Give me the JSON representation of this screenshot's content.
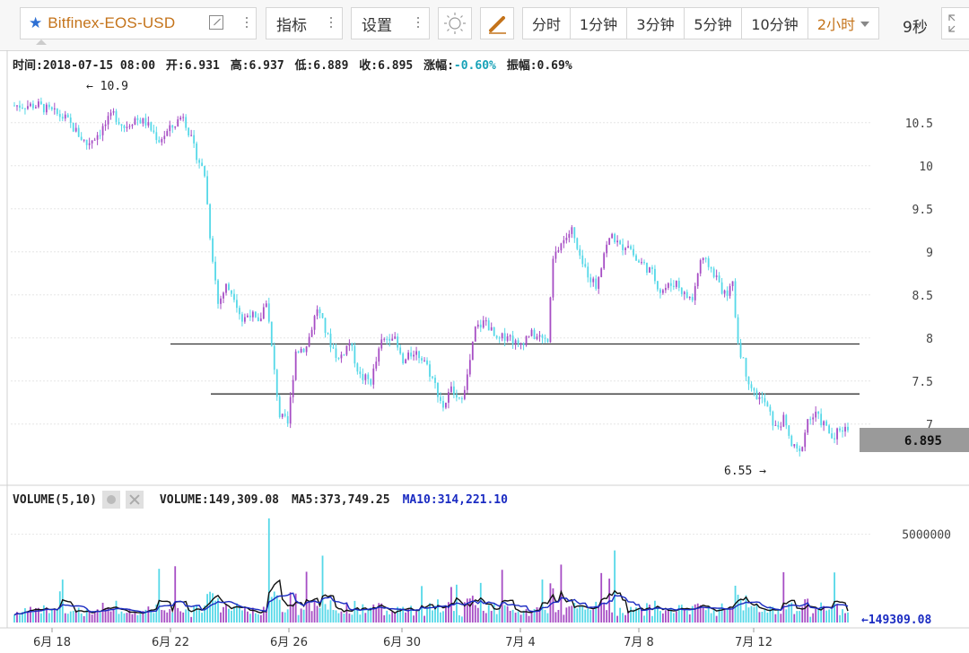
{
  "toolbar": {
    "symbol": "Bitfinex-EOS-USD",
    "indicators_label": "指标",
    "settings_label": "设置",
    "periods": [
      "分时",
      "1分钟",
      "3分钟",
      "5分钟",
      "10分钟",
      "2小时"
    ],
    "active_period": "2小时",
    "countdown": "9秒"
  },
  "info": {
    "time": "时间:2018-07-15 08:00",
    "open": "开:6.931",
    "high": "高:6.937",
    "low": "低:6.889",
    "close": "收:6.895",
    "change_label": "涨幅:",
    "change_value": "-0.60%",
    "amplitude": "振幅:0.69%"
  },
  "volume_info": {
    "title": "VOLUME(5,10)",
    "volume": "VOLUME:149,309.08",
    "ma5": "MA5:373,749.25",
    "ma10": "MA10:314,221.10",
    "last_label": "←149309.08"
  },
  "chart_data": {
    "type": "candlestick",
    "price_axis_ticks": [
      "10.5",
      "10",
      "9.5",
      "9",
      "8.5",
      "8",
      "7.5",
      "7"
    ],
    "price_ylim": [
      6.3,
      11.05
    ],
    "current_price": "6.895",
    "max_label": "← 10.9",
    "min_label": "6.55 →",
    "volume_axis_ticks": [
      "5000000"
    ],
    "volume_ylim": [
      0,
      6200000
    ],
    "x_tick_labels": [
      "6月 18",
      "6月 22",
      "6月 26",
      "6月 30",
      "7月 4",
      "7月 8",
      "7月 12"
    ],
    "horizontal_lines": [
      7.93,
      7.35
    ],
    "up_color": "#a64dc4",
    "down_color": "#55d8e8",
    "ma5_color": "#111111",
    "ma10_color": "#1a2bc2",
    "price_path": [
      [
        0,
        10.7
      ],
      [
        10,
        10.7
      ],
      [
        20,
        10.55
      ],
      [
        28,
        10.25
      ],
      [
        33,
        10.4
      ],
      [
        38,
        10.6
      ],
      [
        42,
        10.45
      ],
      [
        46,
        10.55
      ],
      [
        50,
        10.5
      ],
      [
        55,
        10.3
      ],
      [
        60,
        10.45
      ],
      [
        64,
        10.6
      ],
      [
        68,
        10.2
      ],
      [
        72,
        9.9
      ],
      [
        74,
        9.2
      ],
      [
        77,
        8.4
      ],
      [
        80,
        8.6
      ],
      [
        83,
        8.5
      ],
      [
        86,
        8.2
      ],
      [
        89,
        8.3
      ],
      [
        92,
        8.15
      ],
      [
        95,
        8.45
      ],
      [
        98,
        7.6
      ],
      [
        100,
        7.1
      ],
      [
        103,
        7.0
      ],
      [
        106,
        7.85
      ],
      [
        110,
        7.9
      ],
      [
        114,
        8.35
      ],
      [
        118,
        8.0
      ],
      [
        122,
        7.75
      ],
      [
        126,
        7.95
      ],
      [
        130,
        7.55
      ],
      [
        134,
        7.5
      ],
      [
        138,
        7.95
      ],
      [
        142,
        8.05
      ],
      [
        146,
        7.7
      ],
      [
        150,
        7.85
      ],
      [
        154,
        7.75
      ],
      [
        158,
        7.45
      ],
      [
        161,
        7.2
      ],
      [
        164,
        7.4
      ],
      [
        167,
        7.25
      ],
      [
        170,
        7.55
      ],
      [
        173,
        8.1
      ],
      [
        177,
        8.2
      ],
      [
        181,
        7.95
      ],
      [
        185,
        8.05
      ],
      [
        189,
        7.9
      ],
      [
        193,
        8.05
      ],
      [
        197,
        8.0
      ],
      [
        200,
        7.95
      ],
      [
        202,
        8.9
      ],
      [
        205,
        9.1
      ],
      [
        209,
        9.25
      ],
      [
        212,
        8.9
      ],
      [
        215,
        8.75
      ],
      [
        218,
        8.6
      ],
      [
        221,
        9.0
      ],
      [
        224,
        9.2
      ],
      [
        227,
        9.05
      ],
      [
        230,
        9.1
      ],
      [
        233,
        8.9
      ],
      [
        236,
        8.85
      ],
      [
        239,
        8.75
      ],
      [
        242,
        8.55
      ],
      [
        245,
        8.6
      ],
      [
        248,
        8.65
      ],
      [
        251,
        8.5
      ],
      [
        254,
        8.45
      ],
      [
        257,
        8.9
      ],
      [
        260,
        8.85
      ],
      [
        263,
        8.7
      ],
      [
        266,
        8.5
      ],
      [
        269,
        8.6
      ],
      [
        271,
        7.95
      ],
      [
        274,
        7.6
      ],
      [
        277,
        7.35
      ],
      [
        281,
        7.25
      ],
      [
        285,
        6.95
      ],
      [
        288,
        7.05
      ],
      [
        291,
        6.75
      ],
      [
        294,
        6.65
      ],
      [
        297,
        7.05
      ],
      [
        300,
        7.1
      ],
      [
        303,
        7.0
      ],
      [
        306,
        6.85
      ],
      [
        309,
        6.95
      ],
      [
        312,
        6.95
      ]
    ]
  }
}
